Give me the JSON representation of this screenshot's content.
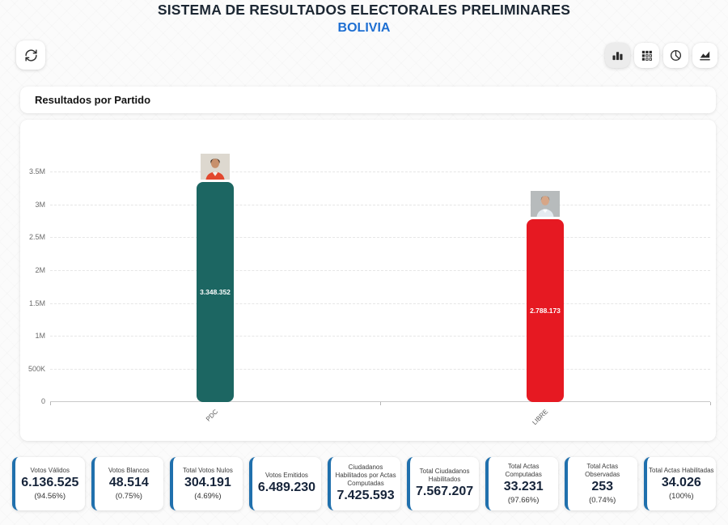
{
  "header": {
    "title": "SISTEMA DE RESULTADOS ELECTORALES PRELIMINARES",
    "subtitle": "BOLIVIA",
    "title_color": "#1c2733",
    "subtitle_color": "#1e6fd2"
  },
  "toolbar": {
    "buttons": [
      {
        "icon": "bar-chart-icon",
        "active": true
      },
      {
        "icon": "pivot-table-icon",
        "active": false
      },
      {
        "icon": "pie-chart-icon",
        "active": false
      },
      {
        "icon": "area-chart-icon",
        "active": false
      }
    ],
    "refresh_icon": "refresh-icon"
  },
  "section": {
    "title": "Resultados por Partido"
  },
  "chart_data": {
    "type": "bar",
    "categories": [
      "PDC",
      "LIBRE"
    ],
    "values": [
      3348352,
      2788173
    ],
    "value_labels": [
      "3.348.352",
      "2.788.173"
    ],
    "bar_colors": [
      "#1c6662",
      "#e61922"
    ],
    "ylim": [
      0,
      3500000
    ],
    "yticks": [
      "3.5M",
      "3M",
      "2.5M",
      "2M",
      "1.5M",
      "1M",
      "500K",
      "0"
    ],
    "grid": "horizontal dashed",
    "legend": "none",
    "title": "Resultados por Partido"
  },
  "stat_cards": [
    {
      "label": "Votos Válidos",
      "value": "6.136.525",
      "percent": "(94.56%)"
    },
    {
      "label": "Votos Blancos",
      "value": "48.514",
      "percent": "(0.75%)"
    },
    {
      "label": "Total Votos Nulos",
      "value": "304.191",
      "percent": "(4.69%)"
    },
    {
      "label": "Votos Emitidos",
      "value": "6.489.230"
    },
    {
      "label": "Ciudadanos Habilitados por Actas Computadas",
      "value": "7.425.593"
    },
    {
      "label": "Total Ciudadanos Habilitados",
      "value": "7.567.207"
    },
    {
      "label": "Total Actas Computadas",
      "value": "33.231",
      "percent": "(97.66%)"
    },
    {
      "label": "Total Actas Observadas",
      "value": "253",
      "percent": "(0.74%)"
    },
    {
      "label": "Total Actas Habilitadas",
      "value": "34.026",
      "percent": "(100%)"
    }
  ],
  "colors": {
    "accent_blue": "#2070ad",
    "bar_teal": "#1c6662",
    "bar_red": "#e61922",
    "background": "#fbfbfb"
  }
}
